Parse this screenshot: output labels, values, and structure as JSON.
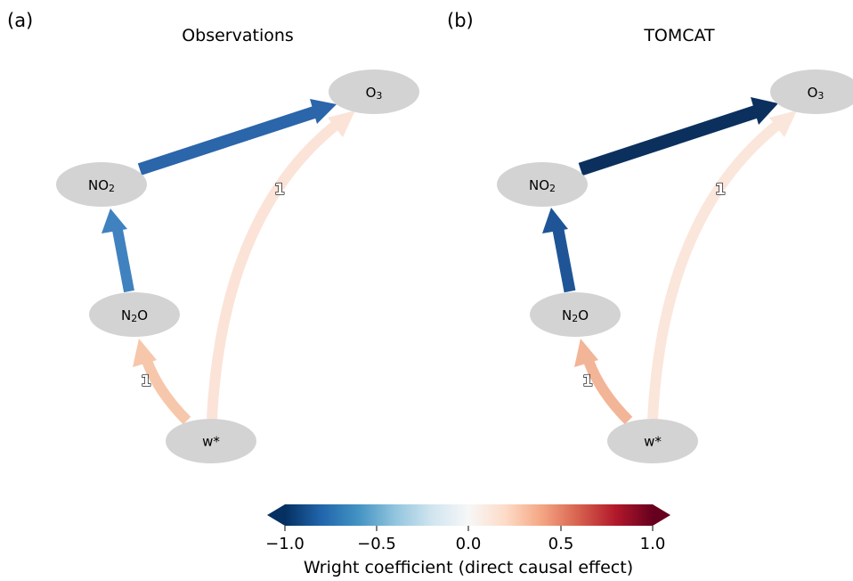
{
  "panels": [
    {
      "tag": "(a)",
      "title": "Observations",
      "nodes": [
        {
          "id": "O3",
          "label": "O",
          "sub": "3"
        },
        {
          "id": "NO2",
          "label": "NO",
          "sub": "2"
        },
        {
          "id": "N2O",
          "label": "N",
          "sub": "2",
          "suffix": "O"
        },
        {
          "id": "w",
          "label": "w*",
          "sub": ""
        }
      ],
      "edges": [
        {
          "from": "NO2",
          "to": "O3",
          "color": "#2b65aa"
        },
        {
          "from": "N2O",
          "to": "NO2",
          "color": "#3f82bf"
        },
        {
          "from": "w",
          "to": "N2O",
          "color": "#f6c7ab",
          "lag": "1"
        },
        {
          "from": "w",
          "to": "O3",
          "color": "#fbe3d8",
          "lag": "1"
        }
      ]
    },
    {
      "tag": "(b)",
      "title": "TOMCAT",
      "nodes": [
        {
          "id": "O3",
          "label": "O",
          "sub": "3"
        },
        {
          "id": "NO2",
          "label": "NO",
          "sub": "2"
        },
        {
          "id": "N2O",
          "label": "N",
          "sub": "2",
          "suffix": "O"
        },
        {
          "id": "w",
          "label": "w*",
          "sub": ""
        }
      ],
      "edges": [
        {
          "from": "NO2",
          "to": "O3",
          "color": "#0b305e"
        },
        {
          "from": "N2O",
          "to": "NO2",
          "color": "#1f5597"
        },
        {
          "from": "w",
          "to": "N2O",
          "color": "#f3b597",
          "lag": "1"
        },
        {
          "from": "w",
          "to": "O3",
          "color": "#fbe6dc",
          "lag": "1"
        }
      ]
    }
  ],
  "colorbar": {
    "label": "Wright coefficient (direct causal effect)",
    "ticks": [
      "−1.0",
      "−0.5",
      "0.0",
      "0.5",
      "1.0"
    ],
    "colors": [
      "#053061",
      "#2166ac",
      "#4393c3",
      "#92c5de",
      "#d1e5f0",
      "#f7f7f7",
      "#fddbc7",
      "#f4a582",
      "#d6604d",
      "#b2182b",
      "#67001f"
    ]
  }
}
